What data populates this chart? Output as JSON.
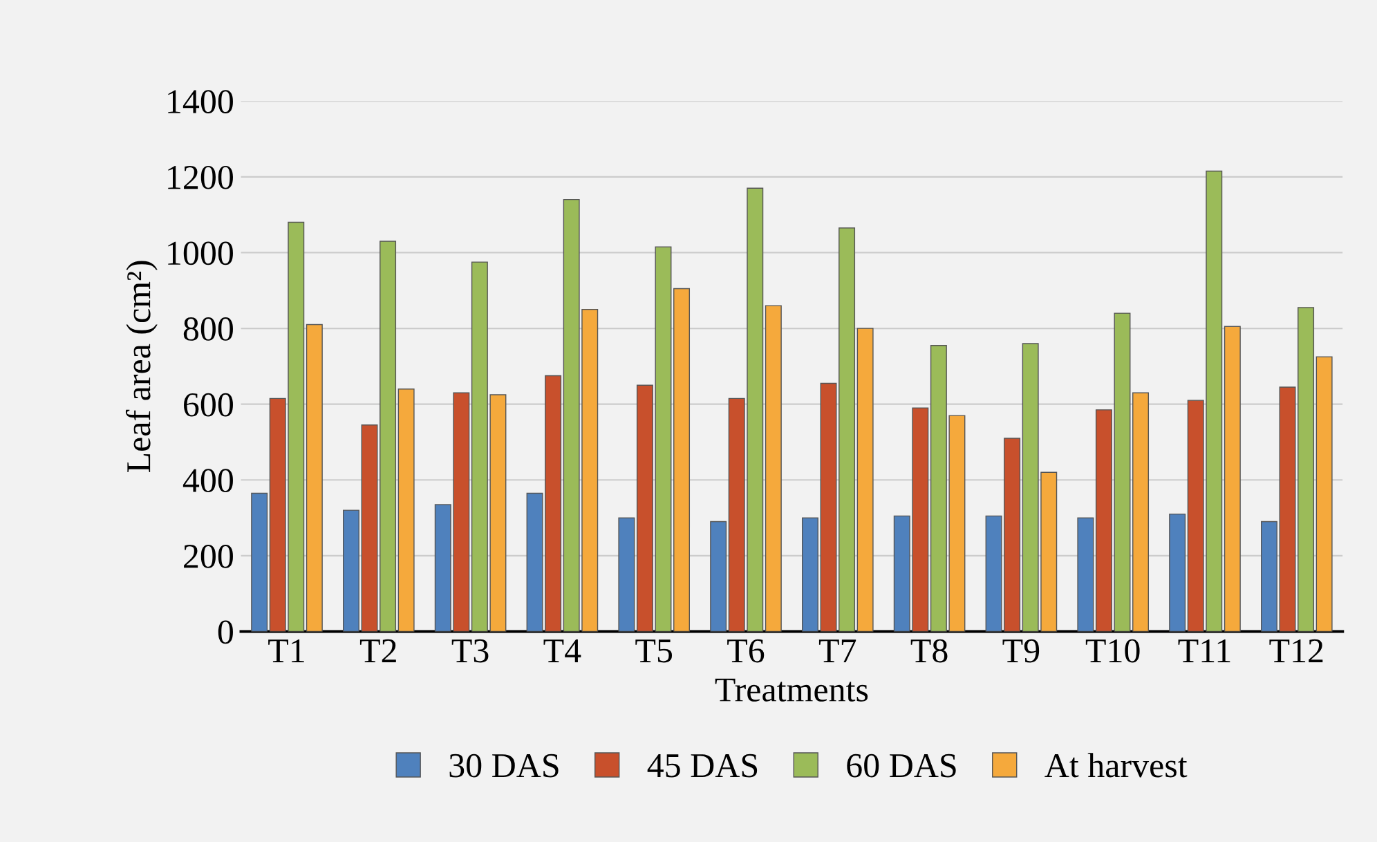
{
  "chart_data": {
    "type": "bar",
    "xlabel": "Treatments",
    "ylabel": "Leaf area (cm²)",
    "categories": [
      "T1",
      "T2",
      "T3",
      "T4",
      "T5",
      "T6",
      "T7",
      "T8",
      "T9",
      "T10",
      "T11",
      "T12"
    ],
    "series": [
      {
        "name": "30 DAS",
        "color": "#4f81bd",
        "values": [
          365,
          320,
          335,
          365,
          300,
          290,
          300,
          305,
          305,
          300,
          310,
          290
        ]
      },
      {
        "name": "45 DAS",
        "color": "#c8502c",
        "values": [
          615,
          545,
          630,
          675,
          650,
          615,
          655,
          590,
          510,
          585,
          610,
          645
        ]
      },
      {
        "name": "60 DAS",
        "color": "#9bbb59",
        "values": [
          1080,
          1030,
          975,
          1140,
          1015,
          1170,
          1065,
          755,
          760,
          840,
          1215,
          855
        ]
      },
      {
        "name": "At harvest",
        "color": "#f5a93c",
        "values": [
          810,
          640,
          625,
          850,
          905,
          860,
          800,
          570,
          420,
          630,
          805,
          725
        ]
      }
    ],
    "ylim": [
      0,
      1400
    ],
    "yticks": [
      0,
      200,
      400,
      600,
      800,
      1000,
      1200,
      1400
    ],
    "grid": "y",
    "legend": "bottom"
  }
}
